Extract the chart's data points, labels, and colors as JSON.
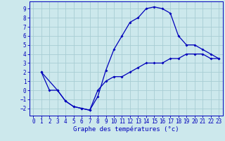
{
  "xlabel": "Graphe des températures (°c)",
  "background_color": "#cce8ec",
  "grid_color": "#a8cdd4",
  "line_color": "#0000bb",
  "xlim": [
    -0.5,
    23.5
  ],
  "ylim": [
    -2.8,
    9.8
  ],
  "xticks": [
    0,
    1,
    2,
    3,
    4,
    5,
    6,
    7,
    8,
    9,
    10,
    11,
    12,
    13,
    14,
    15,
    16,
    17,
    18,
    19,
    20,
    21,
    22,
    23
  ],
  "yticks": [
    -2,
    -1,
    0,
    1,
    2,
    3,
    4,
    5,
    6,
    7,
    8,
    9
  ],
  "curve1_x": [
    1,
    2,
    3,
    4,
    5,
    6,
    7,
    8,
    9,
    10,
    11,
    12,
    13,
    14,
    15,
    16,
    17,
    18,
    19,
    20,
    21,
    22,
    23
  ],
  "curve1_y": [
    2,
    0,
    0,
    -1.2,
    -1.8,
    -2.0,
    -2.2,
    -0.7,
    2.2,
    4.5,
    6.0,
    7.5,
    8.0,
    9.0,
    9.2,
    9.0,
    8.5,
    6.0,
    5.0,
    5.0,
    4.5,
    4.0,
    3.5
  ],
  "curve2_x": [
    1,
    3,
    4,
    5,
    6,
    7,
    8,
    9,
    10,
    11,
    12,
    13,
    14,
    15,
    16,
    17,
    18,
    19,
    20,
    21,
    22,
    23
  ],
  "curve2_y": [
    2,
    0,
    -1.2,
    -1.8,
    -2.0,
    -2.2,
    0.0,
    1.0,
    1.5,
    1.5,
    2.0,
    2.5,
    3.0,
    3.0,
    3.0,
    3.5,
    3.5,
    4.0,
    4.0,
    4.0,
    3.5,
    3.5
  ],
  "marker": "D",
  "marker_size": 2.0,
  "linewidth": 0.9,
  "tick_fontsize": 5.5,
  "xlabel_fontsize": 6.5
}
